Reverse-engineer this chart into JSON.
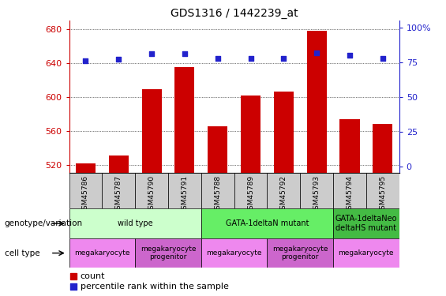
{
  "title": "GDS1316 / 1442239_at",
  "samples": [
    "GSM45786",
    "GSM45787",
    "GSM45790",
    "GSM45791",
    "GSM45788",
    "GSM45789",
    "GSM45792",
    "GSM45793",
    "GSM45794",
    "GSM45795"
  ],
  "bar_values": [
    522,
    531,
    609,
    635,
    565,
    602,
    606,
    678,
    574,
    568
  ],
  "percentile_values": [
    76,
    77,
    81,
    81,
    78,
    78,
    78,
    82,
    80,
    78
  ],
  "ylim_left": [
    510,
    690
  ],
  "ylim_right": [
    -5,
    105
  ],
  "yticks_left": [
    520,
    560,
    600,
    640,
    680
  ],
  "yticks_right": [
    0,
    25,
    50,
    75,
    100
  ],
  "bar_color": "#cc0000",
  "dot_color": "#2222cc",
  "left_axis_color": "#cc0000",
  "right_axis_color": "#2222cc",
  "grid_color": "#000000",
  "genotype_groups": [
    {
      "label": "wild type",
      "start": 0,
      "end": 4,
      "color": "#ccffcc"
    },
    {
      "label": "GATA-1deltaN mutant",
      "start": 4,
      "end": 8,
      "color": "#66ee66"
    },
    {
      "label": "GATA-1deltaNeo\ndeltaHS mutant",
      "start": 8,
      "end": 10,
      "color": "#44bb44"
    }
  ],
  "cell_type_groups": [
    {
      "label": "megakaryocyte",
      "start": 0,
      "end": 2,
      "color": "#ee88ee"
    },
    {
      "label": "megakaryocyte\nprogenitor",
      "start": 2,
      "end": 4,
      "color": "#cc66cc"
    },
    {
      "label": "megakaryocyte",
      "start": 4,
      "end": 6,
      "color": "#ee88ee"
    },
    {
      "label": "megakaryocyte\nprogenitor",
      "start": 6,
      "end": 8,
      "color": "#cc66cc"
    },
    {
      "label": "megakaryocyte",
      "start": 8,
      "end": 10,
      "color": "#ee88ee"
    }
  ],
  "legend_count_color": "#cc0000",
  "legend_dot_color": "#2222cc",
  "xlabel_genotype": "genotype/variation",
  "xlabel_celltype": "cell type",
  "sample_box_color": "#cccccc"
}
